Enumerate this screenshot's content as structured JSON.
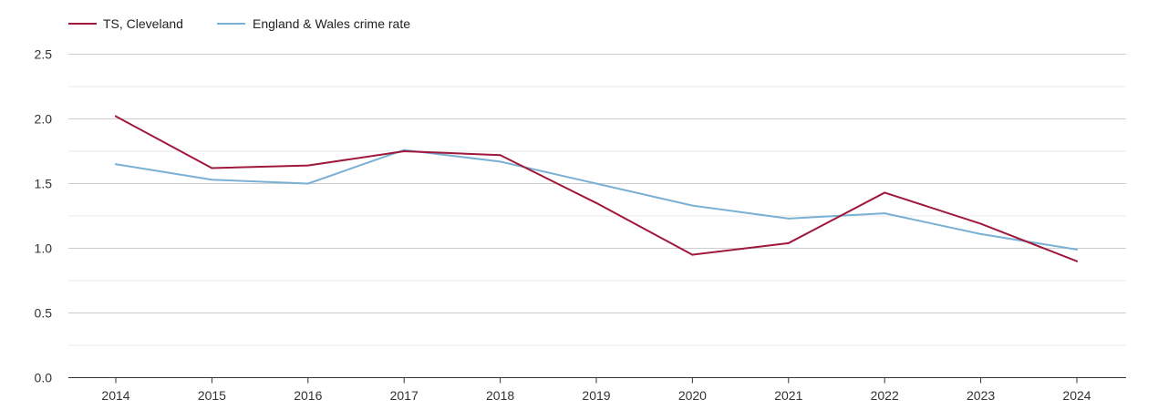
{
  "chart_data": {
    "type": "line",
    "title": "",
    "xlabel": "",
    "ylabel": "",
    "categories": [
      "2014",
      "2015",
      "2016",
      "2017",
      "2018",
      "2019",
      "2020",
      "2021",
      "2022",
      "2023",
      "2024"
    ],
    "ylim": [
      0,
      2.5
    ],
    "yticks": [
      "0.0",
      "0.5",
      "1.0",
      "1.5",
      "2.0",
      "2.5"
    ],
    "ytick_values": [
      0,
      0.5,
      1.0,
      1.5,
      2.0,
      2.5
    ],
    "grid": true,
    "legend_position": "top-left",
    "series": [
      {
        "name": "TS, Cleveland",
        "color": "#a0183b",
        "values": [
          2.02,
          1.62,
          1.64,
          1.75,
          1.72,
          1.35,
          0.95,
          1.04,
          1.43,
          1.19,
          0.9
        ]
      },
      {
        "name": "England & Wales crime rate",
        "color": "#7ab0d4",
        "values": [
          1.65,
          1.53,
          1.5,
          1.76,
          1.67,
          1.5,
          1.33,
          1.23,
          1.27,
          1.11,
          0.99
        ]
      }
    ]
  }
}
